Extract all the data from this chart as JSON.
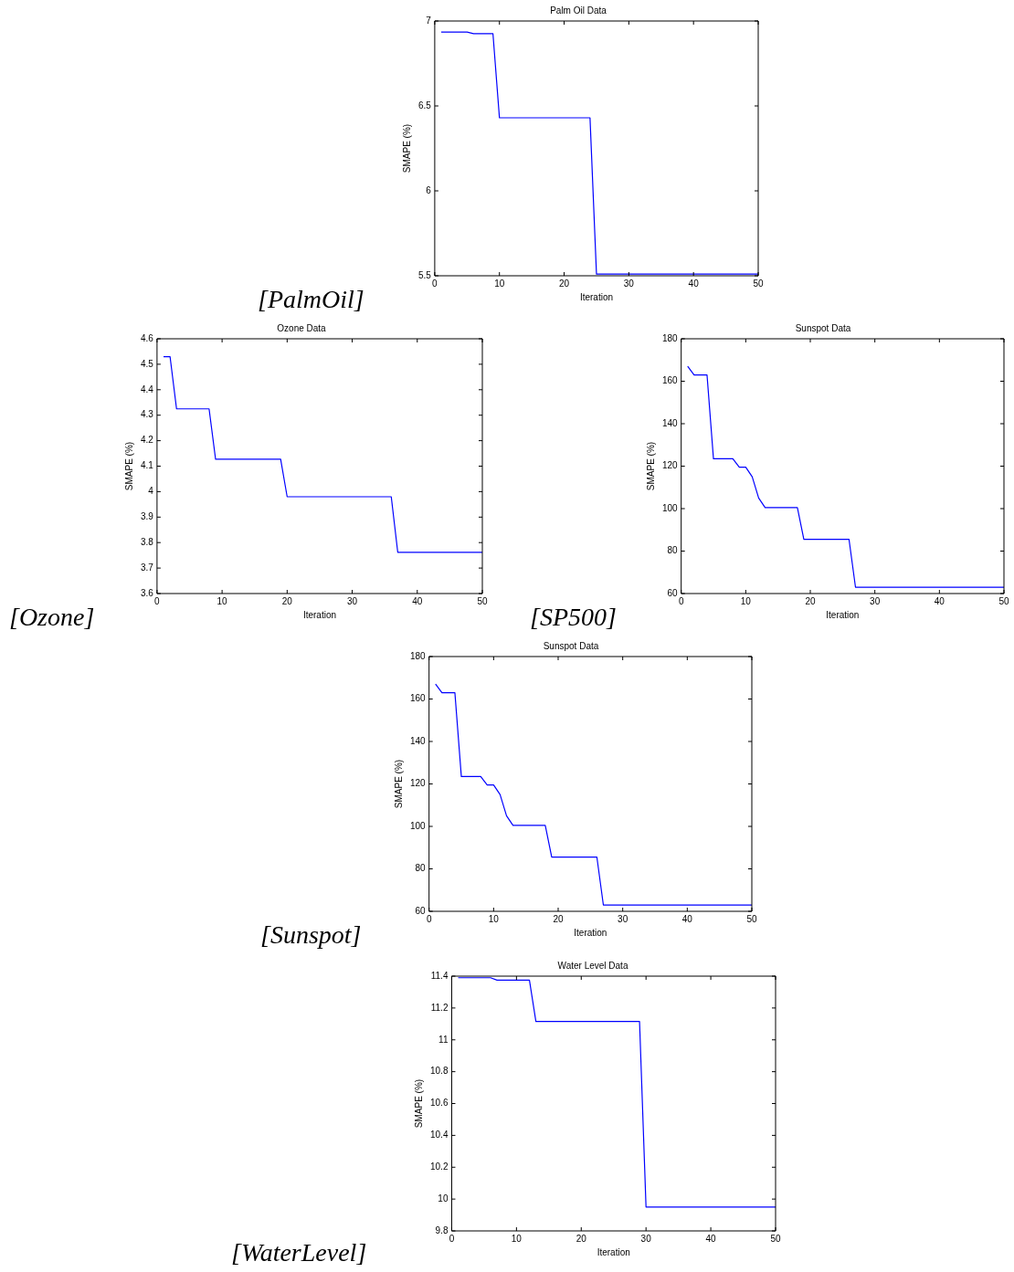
{
  "chart_data": [
    {
      "type": "line",
      "title": "Palm Oil Data",
      "xlabel": "Iteration",
      "ylabel": "SMAPE (%)",
      "color": "#0000ff",
      "x": [
        1,
        5,
        6,
        9,
        10,
        24,
        25,
        50
      ],
      "values": [
        6.935,
        6.935,
        6.925,
        6.925,
        6.43,
        6.43,
        5.51,
        5.51
      ],
      "xlim": [
        0,
        50
      ],
      "xticks": [
        0,
        10,
        20,
        30,
        40,
        50
      ],
      "ylim": [
        5.5,
        7
      ],
      "yticks": [
        5.5,
        6,
        6.5,
        7
      ],
      "marker": "none",
      "annotations": [
        "[PalmOil]"
      ]
    },
    {
      "type": "line",
      "title": "Ozone Data",
      "xlabel": "Iteration",
      "ylabel": "SMAPE (%)",
      "color": "#0000ff",
      "x": [
        1,
        2,
        3,
        8,
        9,
        19,
        20,
        36,
        37,
        50
      ],
      "values": [
        4.53,
        4.53,
        4.325,
        4.325,
        4.127,
        4.127,
        3.98,
        3.98,
        3.762,
        3.762
      ],
      "xlim": [
        0,
        50
      ],
      "xticks": [
        0,
        10,
        20,
        30,
        40,
        50
      ],
      "ylim": [
        3.6,
        4.6
      ],
      "yticks": [
        3.6,
        3.7,
        3.8,
        3.9,
        4,
        4.1,
        4.2,
        4.3,
        4.4,
        4.5,
        4.6
      ],
      "marker": "none",
      "annotations": [
        "[Ozone]"
      ]
    },
    {
      "type": "line",
      "title": "Sunspot Data",
      "xlabel": "Iteration",
      "ylabel": "SMAPE (%)",
      "color": "#0000ff",
      "x": [
        1,
        2,
        4,
        5,
        8,
        9,
        10,
        11,
        12,
        13,
        18,
        19,
        26,
        27,
        50
      ],
      "values": [
        167,
        163,
        163,
        123.5,
        123.5,
        119.5,
        119.5,
        115,
        105,
        100.5,
        100.5,
        85.5,
        85.5,
        63,
        63
      ],
      "xlim": [
        0,
        50
      ],
      "xticks": [
        0,
        10,
        20,
        30,
        40,
        50
      ],
      "ylim": [
        60,
        180
      ],
      "yticks": [
        60,
        80,
        100,
        120,
        140,
        160,
        180
      ],
      "marker": "none",
      "annotations": [
        "[SP500]"
      ]
    },
    {
      "type": "line",
      "title": "Sunspot Data",
      "xlabel": "Iteration",
      "ylabel": "SMAPE (%)",
      "color": "#0000ff",
      "x": [
        1,
        2,
        4,
        5,
        8,
        9,
        10,
        11,
        12,
        13,
        18,
        19,
        26,
        27,
        50
      ],
      "values": [
        167,
        163,
        163,
        123.5,
        123.5,
        119.5,
        119.5,
        115,
        105,
        100.5,
        100.5,
        85.5,
        85.5,
        63,
        63
      ],
      "xlim": [
        0,
        50
      ],
      "xticks": [
        0,
        10,
        20,
        30,
        40,
        50
      ],
      "ylim": [
        60,
        180
      ],
      "yticks": [
        60,
        80,
        100,
        120,
        140,
        160,
        180
      ],
      "marker": "none",
      "annotations": [
        "[Sunspot]"
      ]
    },
    {
      "type": "line",
      "title": "Water Level Data",
      "xlabel": "Iteration",
      "ylabel": "SMAPE (%)",
      "color": "#0000ff",
      "x": [
        1,
        6,
        7,
        12,
        13,
        29,
        30,
        50
      ],
      "values": [
        11.39,
        11.39,
        11.375,
        11.375,
        11.115,
        11.115,
        9.95,
        9.95
      ],
      "xlim": [
        0,
        50
      ],
      "xticks": [
        0,
        10,
        20,
        30,
        40,
        50
      ],
      "ylim": [
        9.8,
        11.4
      ],
      "yticks": [
        9.8,
        10,
        10.2,
        10.4,
        10.6,
        10.8,
        11,
        11.2,
        11.4
      ],
      "marker": "none",
      "annotations": [
        "[WaterLevel]"
      ]
    }
  ]
}
